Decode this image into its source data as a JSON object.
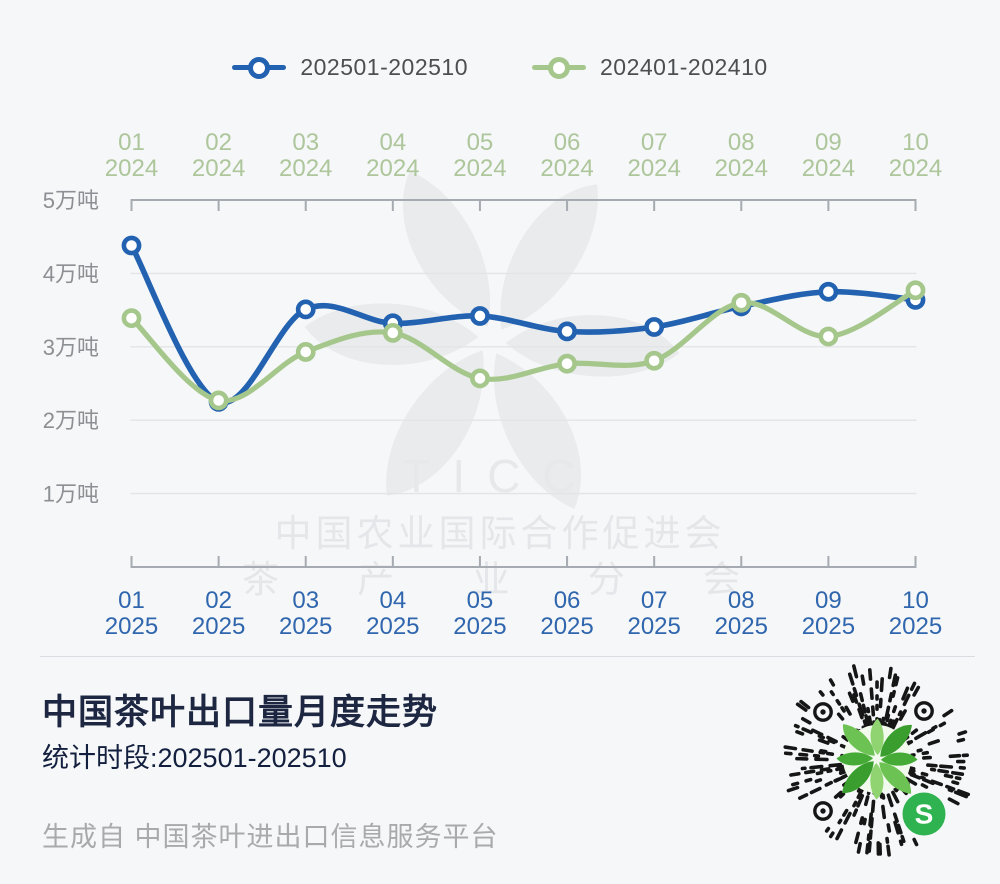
{
  "legend": [
    {
      "label": "202501-202510",
      "color": "#2262b0"
    },
    {
      "label": "202401-202410",
      "color": "#a5c78c"
    }
  ],
  "chart_data": {
    "type": "line",
    "title": "中国茶叶出口量月度走势",
    "unit": "万吨",
    "categories": [
      "01",
      "02",
      "03",
      "04",
      "05",
      "06",
      "07",
      "08",
      "09",
      "10"
    ],
    "top_axis_year": "2024",
    "bottom_axis_year": "2025",
    "y_tick_labels": [
      "5万吨",
      "4万吨",
      "3万吨",
      "2万吨",
      "1万吨"
    ],
    "ylim": [
      0,
      5
    ],
    "grid": true,
    "smooth": true,
    "legend_position": "top",
    "series": [
      {
        "name": "202501-202510",
        "color": "#2262b0",
        "values": [
          4.38,
          2.25,
          3.51,
          3.32,
          3.42,
          3.21,
          3.27,
          3.55,
          3.75,
          3.64
        ]
      },
      {
        "name": "202401-202410",
        "color": "#a5c78c",
        "values": [
          3.39,
          2.27,
          2.93,
          3.19,
          2.57,
          2.77,
          2.81,
          3.6,
          3.14,
          3.77
        ]
      }
    ],
    "axis_label_colors": {
      "top": "#adc69b",
      "bottom": "#2f66ad",
      "y": "#8c8f93"
    }
  },
  "watermark": {
    "line1": "TICC",
    "line2": "中国农业国际合作促进会",
    "line3": "茶 产 业 分 会"
  },
  "footer": {
    "title": "中国茶叶出口量月度走势",
    "subtitle": "统计时段:202501-202510",
    "source": "生成自 中国茶叶进出口信息服务平台"
  },
  "qr": {
    "badge_letter": "S"
  }
}
